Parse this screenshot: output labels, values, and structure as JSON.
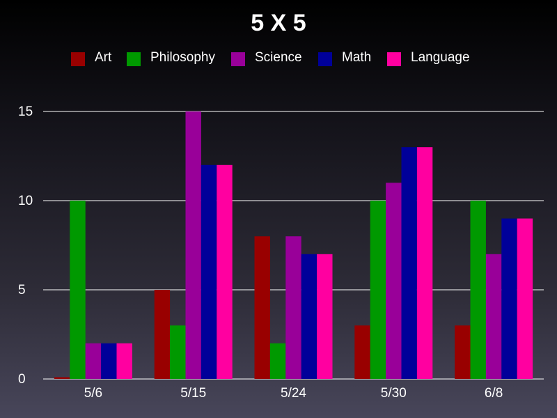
{
  "chart_data": {
    "type": "bar",
    "title": "5 X 5",
    "xlabel": "",
    "ylabel": "",
    "categories": [
      "5/6",
      "5/15",
      "5/24",
      "5/30",
      "6/8"
    ],
    "series": [
      {
        "name": "Art",
        "color": "#990000",
        "values": [
          0.1,
          5,
          8,
          3,
          3
        ]
      },
      {
        "name": "Philosophy",
        "color": "#009900",
        "values": [
          10,
          3,
          2,
          10,
          10
        ]
      },
      {
        "name": "Science",
        "color": "#990099",
        "values": [
          2,
          15,
          8,
          11,
          7
        ]
      },
      {
        "name": "Math",
        "color": "#000099",
        "values": [
          2,
          12,
          7,
          13,
          9
        ]
      },
      {
        "name": "Language",
        "color": "#ff00a0",
        "values": [
          2,
          12,
          7,
          13,
          9
        ]
      }
    ],
    "ylim": [
      0,
      15
    ],
    "yticks": [
      "0",
      "5",
      "10",
      "15"
    ],
    "grid": true,
    "legend_position": "top"
  }
}
